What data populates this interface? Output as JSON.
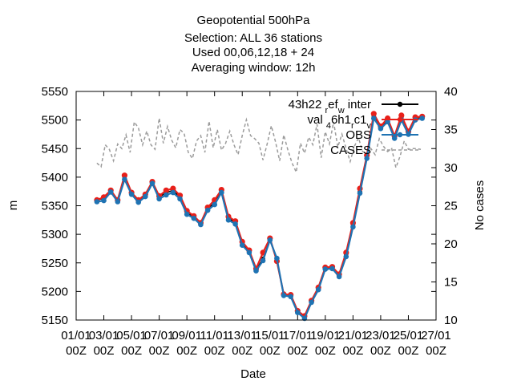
{
  "chart_data": {
    "type": "line",
    "title_lines": [
      "Geopotential 500hPa",
      "Selection: ALL     36 stations",
      "Used  00,06,12,18  + 24",
      "Averaging window: 12h"
    ],
    "xlabel": "Date",
    "ylabel": "m",
    "y2label": "No cases",
    "xlim": [
      0,
      26
    ],
    "ylim": [
      5150,
      5550
    ],
    "y2lim": [
      10,
      40
    ],
    "x_ticks": [
      0,
      2,
      4,
      6,
      8,
      10,
      12,
      14,
      16,
      18,
      20,
      22,
      24,
      26
    ],
    "x_tick_labels": [
      [
        "01/01",
        "00Z"
      ],
      [
        "03/01",
        "00Z"
      ],
      [
        "05/01",
        "00Z"
      ],
      [
        "07/01",
        "00Z"
      ],
      [
        "09/01",
        "00Z"
      ],
      [
        "11/01",
        "00Z"
      ],
      [
        "13/01",
        "00Z"
      ],
      [
        "15/01",
        "00Z"
      ],
      [
        "17/01",
        "00Z"
      ],
      [
        "19/01",
        "00Z"
      ],
      [
        "21/01",
        "00Z"
      ],
      [
        "23/01",
        "00Z"
      ],
      [
        "25/01",
        "00Z"
      ],
      [
        "27/01",
        "00Z"
      ]
    ],
    "y_ticks": [
      5150,
      5200,
      5250,
      5300,
      5350,
      5400,
      5450,
      5500,
      5550
    ],
    "y2_ticks": [
      10,
      15,
      20,
      25,
      30,
      35,
      40
    ],
    "legend_position": "top-right",
    "x": [
      1.5,
      2.0,
      2.5,
      3.0,
      3.5,
      4.0,
      4.5,
      5.0,
      5.5,
      6.0,
      6.5,
      7.0,
      7.5,
      8.0,
      8.5,
      9.0,
      9.5,
      10.0,
      10.5,
      11.0,
      11.5,
      12.0,
      12.5,
      13.0,
      13.5,
      14.0,
      14.5,
      15.0,
      15.5,
      16.0,
      16.5,
      17.0,
      17.5,
      18.0,
      18.5,
      19.0,
      19.5,
      20.0,
      20.5,
      21.0,
      21.5,
      22.0,
      22.5,
      23.0,
      23.5,
      24.0,
      24.5,
      25.0
    ],
    "series": [
      {
        "name": "43h22 ref_w inter",
        "legend_main": "43h22",
        "legend_parts": [
          [
            "r",
            "sub"
          ],
          [
            "ef",
            ""
          ],
          [
            "w",
            "sub"
          ],
          [
            " inter",
            ""
          ]
        ],
        "color": "#000000",
        "axis": "y1",
        "values": [
          5360,
          5363,
          5375,
          5358,
          5400,
          5372,
          5358,
          5368,
          5390,
          5365,
          5373,
          5377,
          5365,
          5338,
          5330,
          5318,
          5345,
          5355,
          5375,
          5328,
          5321,
          5284,
          5270,
          5238,
          5257,
          5291,
          5255,
          5193,
          5193,
          5165,
          5155,
          5183,
          5205,
          5240,
          5240,
          5228,
          5265,
          5315,
          5375,
          5437,
          5507,
          5487,
          5500,
          5470,
          5505,
          5478,
          5503,
          5505
        ]
      },
      {
        "name": "val_4 6h1_r c1_v",
        "legend_main": "val",
        "legend_parts": [
          [
            "4",
            "sub"
          ],
          [
            "6h1",
            ""
          ],
          [
            "r",
            "sub"
          ],
          [
            "c1",
            ""
          ],
          [
            "v",
            "sub"
          ]
        ],
        "color": "#e8201a",
        "axis": "y1",
        "values": [
          5360,
          5365,
          5377,
          5360,
          5403,
          5373,
          5360,
          5370,
          5392,
          5367,
          5377,
          5380,
          5368,
          5341,
          5332,
          5320,
          5347,
          5360,
          5378,
          5331,
          5323,
          5287,
          5272,
          5240,
          5268,
          5293,
          5253,
          5195,
          5194,
          5166,
          5157,
          5184,
          5207,
          5242,
          5243,
          5230,
          5268,
          5320,
          5380,
          5438,
          5511,
          5489,
          5503,
          5472,
          5508,
          5480,
          5505,
          5506
        ]
      },
      {
        "name": "OBS",
        "color": "#1f73b3",
        "axis": "y1",
        "values": [
          5357,
          5359,
          5374,
          5357,
          5396,
          5370,
          5356,
          5366,
          5389,
          5362,
          5369,
          5373,
          5362,
          5335,
          5328,
          5317,
          5342,
          5352,
          5373,
          5325,
          5318,
          5281,
          5268,
          5236,
          5254,
          5290,
          5258,
          5193,
          5191,
          5163,
          5153,
          5181,
          5203,
          5239,
          5240,
          5226,
          5261,
          5313,
          5372,
          5433,
          5503,
          5485,
          5497,
          5468,
          5500,
          5475,
          5500,
          5503
        ]
      },
      {
        "name": "CASES",
        "color": "#9b9b9b",
        "axis": "y2",
        "dashed": true,
        "x": [
          1.5,
          1.8,
          2.1,
          2.4,
          2.7,
          3.0,
          3.3,
          3.6,
          3.9,
          4.2,
          4.5,
          4.8,
          5.1,
          5.4,
          5.7,
          6.0,
          6.3,
          6.6,
          6.9,
          7.2,
          7.5,
          7.8,
          8.1,
          8.4,
          8.7,
          9.0,
          9.3,
          9.6,
          9.9,
          10.2,
          10.5,
          10.8,
          11.1,
          11.4,
          11.7,
          12.0,
          12.3,
          12.6,
          12.9,
          13.2,
          13.5,
          13.8,
          14.1,
          14.4,
          14.7,
          15.0,
          15.3,
          15.6,
          15.9,
          16.2,
          16.5,
          16.8,
          17.1,
          17.4,
          17.7,
          18.0,
          18.3,
          18.6,
          18.9,
          19.2,
          19.5,
          19.8,
          20.1,
          20.4,
          20.7,
          21.0,
          21.3,
          21.6,
          21.9,
          22.2,
          22.5,
          22.8,
          23.1,
          23.4,
          23.7,
          24.0,
          24.3,
          24.6,
          24.9
        ],
        "values": [
          30.6,
          30.1,
          33.0,
          32.4,
          30.9,
          33.1,
          32.5,
          34.3,
          32.0,
          36.0,
          35.2,
          33.0,
          34.8,
          33.0,
          32.4,
          36.5,
          33.2,
          35.4,
          33.6,
          32.6,
          35.0,
          34.5,
          32.0,
          31.2,
          33.5,
          34.2,
          32.0,
          36.1,
          32.6,
          35.0,
          32.3,
          33.2,
          34.8,
          33.0,
          31.7,
          34.2,
          36.3,
          34.2,
          33.8,
          33.2,
          31.0,
          33.1,
          35.5,
          33.4,
          30.9,
          34.3,
          32.3,
          30.6,
          29.4,
          33.2,
          31.9,
          34.0,
          33.0,
          35.7,
          31.3,
          34.7,
          33.1,
          36.0,
          32.7,
          34.4,
          32.5,
          30.8,
          32.8,
          33.9,
          32.1,
          31.8,
          32.5,
          31.7,
          33.8,
          32.8,
          32.1,
          32.5,
          30.0,
          31.5,
          33.5,
          32.4,
          32.5,
          32.5,
          32.4
        ]
      }
    ]
  }
}
